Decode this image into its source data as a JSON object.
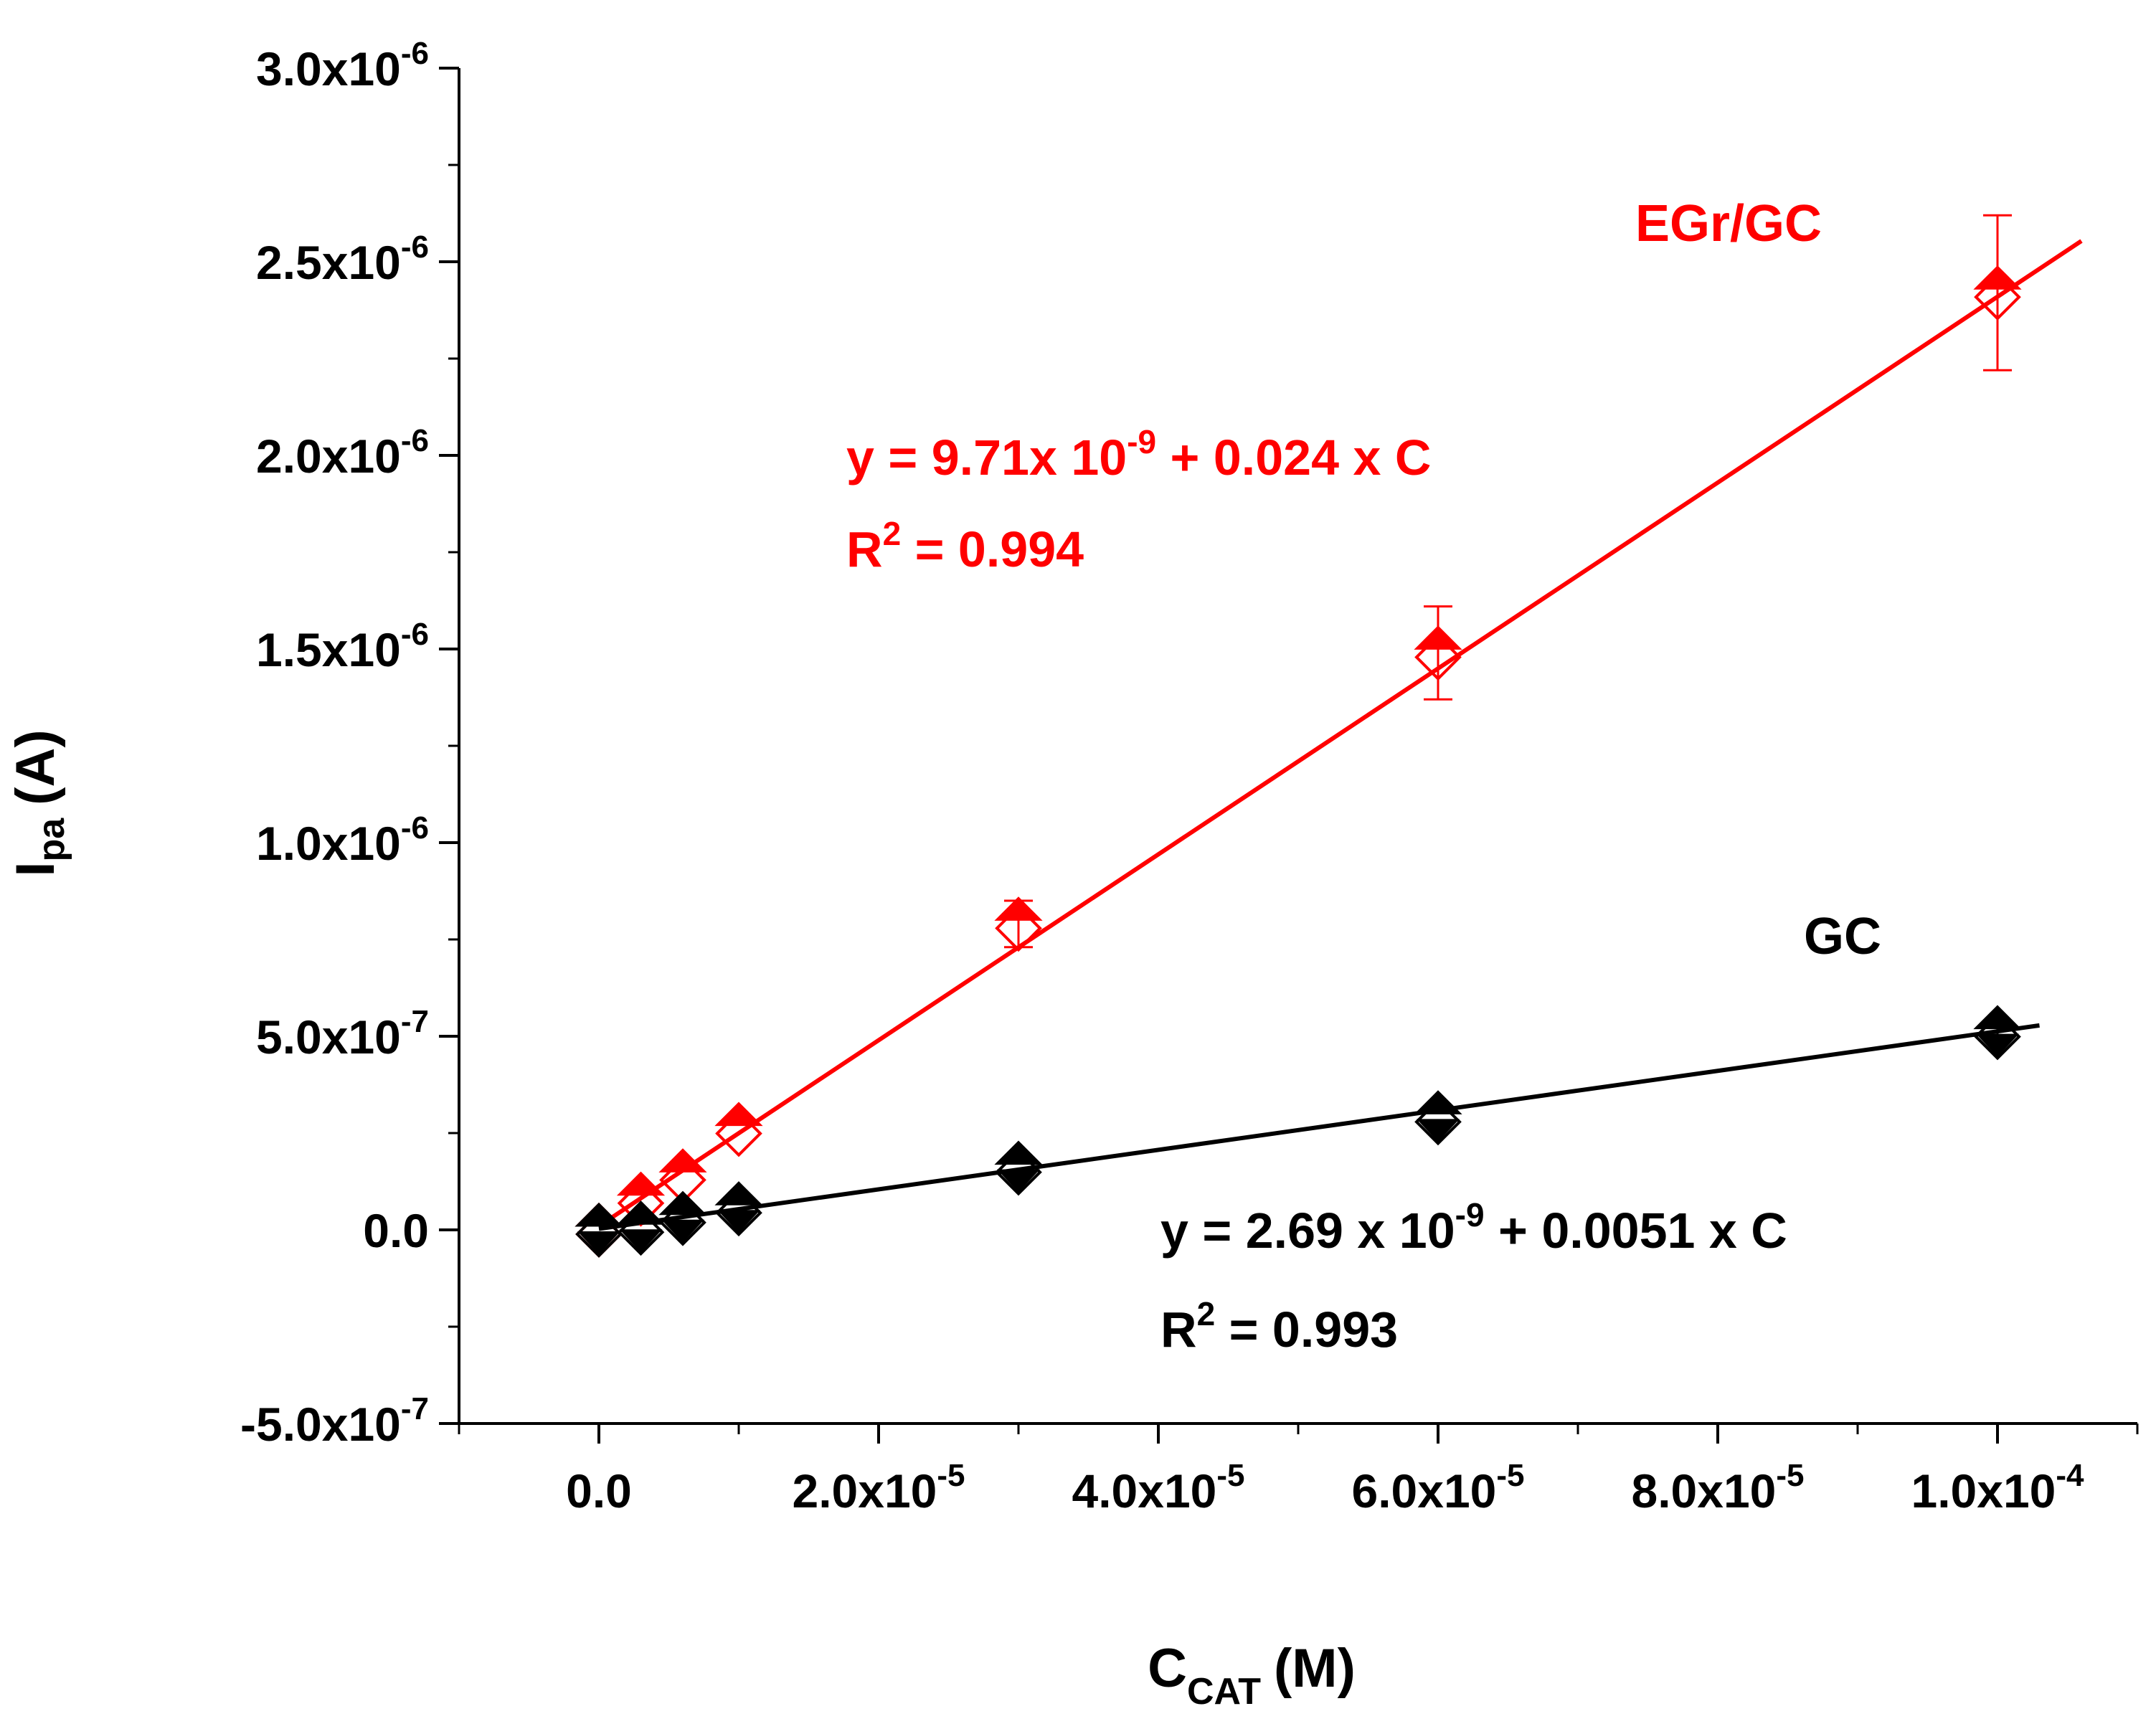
{
  "chart_data": {
    "type": "scatter",
    "xlabel": "C",
    "xlabel_sub": "CAT",
    "xlabel_unit": "(M)",
    "ylabel": "I",
    "ylabel_sub": "pa",
    "ylabel_unit": "(A)",
    "xlim": [
      -1e-05,
      0.00011
    ],
    "ylim": [
      -5e-07,
      3e-06
    ],
    "x_ticks": [
      {
        "value": 0,
        "mant": "0.0",
        "exp": ""
      },
      {
        "value": 2e-05,
        "mant": "2.0x10",
        "exp": "-5"
      },
      {
        "value": 4e-05,
        "mant": "4.0x10",
        "exp": "-5"
      },
      {
        "value": 6e-05,
        "mant": "6.0x10",
        "exp": "-5"
      },
      {
        "value": 8e-05,
        "mant": "8.0x10",
        "exp": "-5"
      },
      {
        "value": 0.0001,
        "mant": "1.0x10",
        "exp": "-4"
      }
    ],
    "y_ticks": [
      {
        "value": -5e-07,
        "mant": "-5.0x10",
        "exp": "-7"
      },
      {
        "value": 0,
        "mant": "0.0",
        "exp": ""
      },
      {
        "value": 5e-07,
        "mant": "5.0x10",
        "exp": "-7"
      },
      {
        "value": 1e-06,
        "mant": "1.0x10",
        "exp": "-6"
      },
      {
        "value": 1.5e-06,
        "mant": "1.5x10",
        "exp": "-6"
      },
      {
        "value": 2e-06,
        "mant": "2.0x10",
        "exp": "-6"
      },
      {
        "value": 2.5e-06,
        "mant": "2.5x10",
        "exp": "-6"
      },
      {
        "value": 3e-06,
        "mant": "3.0x10",
        "exp": "-6"
      }
    ],
    "series": [
      {
        "name": "EGr/GC",
        "color": "#ff0000",
        "x": [
          0,
          3e-06,
          6e-06,
          1e-05,
          3e-05,
          6e-05,
          0.0001
        ],
        "y": [
          0,
          8e-08,
          1.4e-07,
          2.6e-07,
          7.9e-07,
          1.49e-06,
          2.42e-06
        ],
        "err": [
          0,
          0,
          0,
          0,
          6e-08,
          1.2e-07,
          2e-07
        ],
        "fit": {
          "intercept": 9.71e-09,
          "slope": 0.024,
          "x_range": [
            0,
            0.000106
          ]
        },
        "equation": {
          "pre": "y = 9.71x 10",
          "exp": "-9",
          "post": " + 0.024 x C"
        },
        "r2": {
          "pre": "R",
          "exp": "2",
          "post": " = 0.994"
        }
      },
      {
        "name": "GC",
        "color": "#000000",
        "x": [
          0,
          3e-06,
          6e-06,
          1e-05,
          3e-05,
          6e-05,
          0.0001
        ],
        "y": [
          0,
          5e-09,
          3e-08,
          5.5e-08,
          1.6e-07,
          2.9e-07,
          5.1e-07
        ],
        "err": [
          0,
          0,
          0,
          0,
          0,
          0,
          2e-08
        ],
        "fit": {
          "intercept": 2.69e-09,
          "slope": 0.0051,
          "x_range": [
            0,
            0.000103
          ]
        },
        "equation": {
          "pre": "y = 2.69 x 10",
          "exp": "-9",
          "post": " + 0.0051 x C"
        },
        "r2": {
          "pre": "R",
          "exp": "2",
          "post": " = 0.993"
        }
      }
    ]
  }
}
